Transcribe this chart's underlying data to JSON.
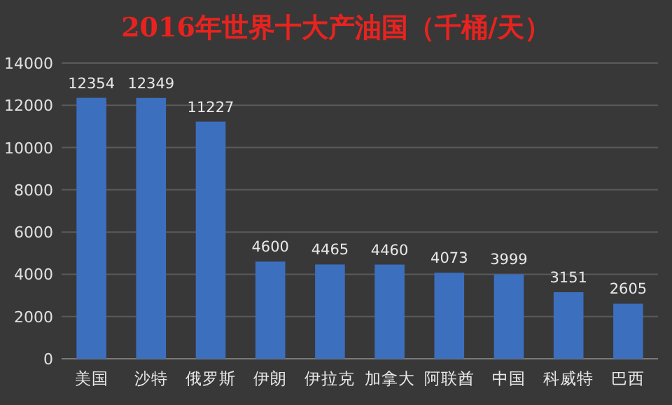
{
  "chart_data": {
    "type": "bar",
    "title": "2016年世界十大产油国（千桶/天）",
    "categories": [
      "美国",
      "沙特",
      "俄罗斯",
      "伊朗",
      "伊拉克",
      "加拿大",
      "阿联酋",
      "中国",
      "科威特",
      "巴西"
    ],
    "values": [
      12354,
      12349,
      11227,
      4600,
      4465,
      4460,
      4073,
      3999,
      3151,
      2605
    ],
    "color": "#3d6fbf",
    "ylim": [
      0,
      14000
    ],
    "yticks": [
      0,
      2000,
      4000,
      6000,
      8000,
      10000,
      12000,
      14000
    ],
    "grid": "y",
    "data_labels": true
  }
}
